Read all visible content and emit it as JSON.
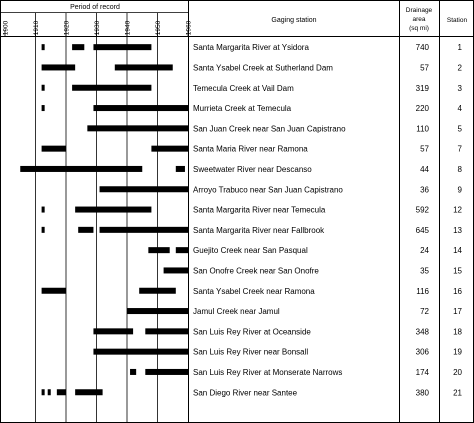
{
  "header": {
    "period_label": "Period of record",
    "station_label": "Gaging station",
    "area_label_1": "Drainage",
    "area_label_2": "area",
    "area_label_3": "(sq mi)",
    "id_label": "Station"
  },
  "years": [
    "1900",
    "1910",
    "1920",
    "1930",
    "1940",
    "1950",
    "1960"
  ],
  "rows": [
    {
      "name": "Santa Margarita River at Ysidora",
      "area": "740",
      "station": "1",
      "bars": [
        [
          1912,
          1913
        ],
        [
          1922,
          1926
        ],
        [
          1929,
          1948
        ]
      ]
    },
    {
      "name": "Santa Ysabel Creek at Sutherland Dam",
      "area": "57",
      "station": "2",
      "bars": [
        [
          1912,
          1923
        ],
        [
          1936,
          1955
        ]
      ]
    },
    {
      "name": "Temecula Creek at Vail Dam",
      "area": "319",
      "station": "3",
      "bars": [
        [
          1912,
          1913
        ],
        [
          1922,
          1948
        ]
      ]
    },
    {
      "name": "Murrieta Creek at Temecula",
      "area": "220",
      "station": "4",
      "bars": [
        [
          1912,
          1913
        ],
        [
          1929,
          1960
        ]
      ]
    },
    {
      "name": "San Juan Creek near San Juan Capistrano",
      "area": "110",
      "station": "5",
      "bars": [
        [
          1927,
          1960
        ]
      ]
    },
    {
      "name": "Santa Maria River near Ramona",
      "area": "57",
      "station": "7",
      "bars": [
        [
          1912,
          1920
        ],
        [
          1948,
          1960
        ]
      ]
    },
    {
      "name": "Sweetwater River near Descanso",
      "area": "44",
      "station": "8",
      "bars": [
        [
          1905,
          1945
        ],
        [
          1956,
          1959
        ]
      ]
    },
    {
      "name": "Arroyo Trabuco near San Juan Capistrano",
      "area": "36",
      "station": "9",
      "bars": [
        [
          1931,
          1960
        ]
      ]
    },
    {
      "name": "Santa Margarita River near Temecula",
      "area": "592",
      "station": "12",
      "bars": [
        [
          1912,
          1913
        ],
        [
          1923,
          1948
        ]
      ]
    },
    {
      "name": "Santa Margarita River near Fallbrook",
      "area": "645",
      "station": "13",
      "bars": [
        [
          1912,
          1913
        ],
        [
          1924,
          1929
        ],
        [
          1931,
          1960
        ]
      ]
    },
    {
      "name": "Guejito Creek near San Pasqual",
      "area": "24",
      "station": "14",
      "bars": [
        [
          1947,
          1954
        ],
        [
          1956,
          1960
        ]
      ]
    },
    {
      "name": "San Onofre Creek near San Onofre",
      "area": "35",
      "station": "15",
      "bars": [
        [
          1952,
          1960
        ]
      ]
    },
    {
      "name": "Santa Ysabel Creek near Ramona",
      "area": "116",
      "station": "16",
      "bars": [
        [
          1912,
          1920
        ],
        [
          1944,
          1956
        ]
      ]
    },
    {
      "name": "Jamul Creek near Jamul",
      "area": "72",
      "station": "17",
      "bars": [
        [
          1940,
          1960
        ]
      ]
    },
    {
      "name": "San Luis Rey River at Oceanside",
      "area": "348",
      "station": "18",
      "bars": [
        [
          1929,
          1942
        ],
        [
          1946,
          1960
        ]
      ]
    },
    {
      "name": "San Luis Rey River near Bonsall",
      "area": "306",
      "station": "19",
      "bars": [
        [
          1929,
          1960
        ]
      ]
    },
    {
      "name": "San Luis Rey River at Monserate Narrows",
      "area": "174",
      "station": "20",
      "bars": [
        [
          1941,
          1943
        ],
        [
          1946,
          1960
        ]
      ]
    },
    {
      "name": "San Diego River near Santee",
      "area": "380",
      "station": "21",
      "bars": [
        [
          1912,
          1913
        ],
        [
          1914,
          1915
        ],
        [
          1917,
          1920
        ],
        [
          1923,
          1932
        ]
      ]
    }
  ]
}
